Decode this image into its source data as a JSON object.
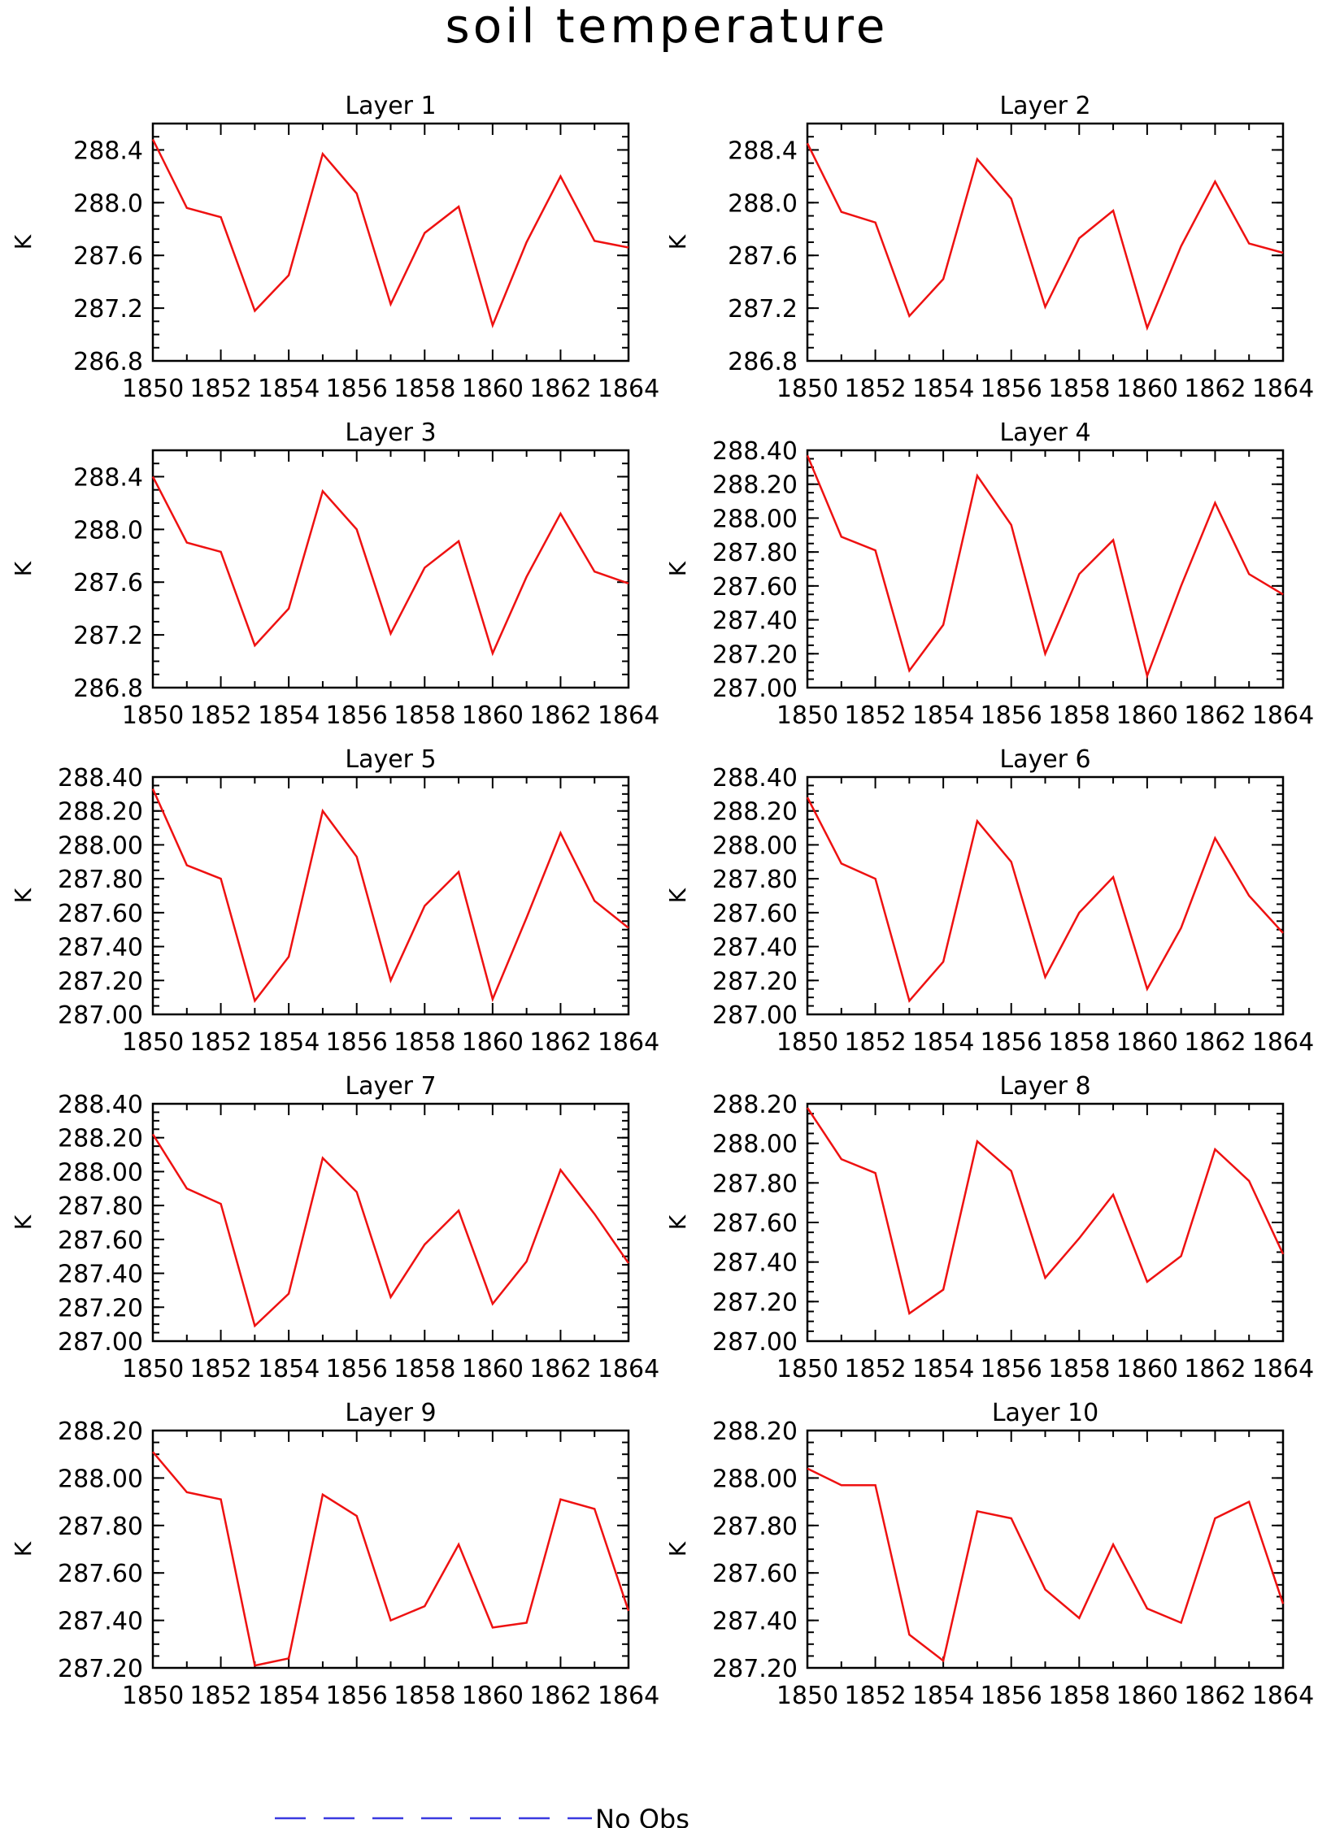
{
  "title": "soil temperature",
  "legend": {
    "label": "No Obs",
    "color": "#3a3ae0"
  },
  "series_color": "#ee1111",
  "chart_data": [
    {
      "type": "line",
      "title": "Layer 1",
      "ylabel": "K",
      "x_range": [
        1850,
        1864
      ],
      "y_range": [
        286.8,
        288.6
      ],
      "x_ticks": [
        "1850",
        "1852",
        "1854",
        "1856",
        "1858",
        "1860",
        "1862",
        "1864"
      ],
      "y_ticks": [
        "286.8",
        "287.2",
        "287.6",
        "288.0",
        "288.4"
      ],
      "y_tick_values": [
        286.8,
        287.2,
        287.6,
        288.0,
        288.4
      ],
      "x": [
        1850,
        1851,
        1852,
        1853,
        1854,
        1855,
        1856,
        1857,
        1858,
        1859,
        1860,
        1861,
        1862,
        1863,
        1864
      ],
      "values": [
        288.48,
        287.96,
        287.89,
        287.18,
        287.45,
        288.37,
        288.07,
        287.23,
        287.77,
        287.97,
        287.07,
        287.7,
        288.2,
        287.71,
        287.66
      ]
    },
    {
      "type": "line",
      "title": "Layer 2",
      "ylabel": "K",
      "x_range": [
        1850,
        1864
      ],
      "y_range": [
        286.8,
        288.6
      ],
      "x_ticks": [
        "1850",
        "1852",
        "1854",
        "1856",
        "1858",
        "1860",
        "1862",
        "1864"
      ],
      "y_ticks": [
        "286.8",
        "287.2",
        "287.6",
        "288.0",
        "288.4"
      ],
      "y_tick_values": [
        286.8,
        287.2,
        287.6,
        288.0,
        288.4
      ],
      "x": [
        1850,
        1851,
        1852,
        1853,
        1854,
        1855,
        1856,
        1857,
        1858,
        1859,
        1860,
        1861,
        1862,
        1863,
        1864
      ],
      "values": [
        288.45,
        287.93,
        287.85,
        287.14,
        287.42,
        288.33,
        288.03,
        287.21,
        287.73,
        287.94,
        287.05,
        287.67,
        288.16,
        287.69,
        287.62
      ]
    },
    {
      "type": "line",
      "title": "Layer 3",
      "ylabel": "K",
      "x_range": [
        1850,
        1864
      ],
      "y_range": [
        286.8,
        288.6
      ],
      "x_ticks": [
        "1850",
        "1852",
        "1854",
        "1856",
        "1858",
        "1860",
        "1862",
        "1864"
      ],
      "y_ticks": [
        "286.8",
        "287.2",
        "287.6",
        "288.0",
        "288.4"
      ],
      "y_tick_values": [
        286.8,
        287.2,
        287.6,
        288.0,
        288.4
      ],
      "x": [
        1850,
        1851,
        1852,
        1853,
        1854,
        1855,
        1856,
        1857,
        1858,
        1859,
        1860,
        1861,
        1862,
        1863,
        1864
      ],
      "values": [
        288.4,
        287.9,
        287.83,
        287.12,
        287.4,
        288.29,
        288.0,
        287.21,
        287.71,
        287.91,
        287.06,
        287.64,
        288.12,
        287.68,
        287.59
      ]
    },
    {
      "type": "line",
      "title": "Layer 4",
      "ylabel": "K",
      "x_range": [
        1850,
        1864
      ],
      "y_range": [
        287.0,
        288.4
      ],
      "x_ticks": [
        "1850",
        "1852",
        "1854",
        "1856",
        "1858",
        "1860",
        "1862",
        "1864"
      ],
      "y_ticks": [
        "287.00",
        "287.20",
        "287.40",
        "287.60",
        "287.80",
        "288.00",
        "288.20",
        "288.40"
      ],
      "y_tick_values": [
        287.0,
        287.2,
        287.4,
        287.6,
        287.8,
        288.0,
        288.2,
        288.4
      ],
      "x": [
        1850,
        1851,
        1852,
        1853,
        1854,
        1855,
        1856,
        1857,
        1858,
        1859,
        1860,
        1861,
        1862,
        1863,
        1864
      ],
      "values": [
        288.37,
        287.89,
        287.81,
        287.1,
        287.37,
        288.25,
        287.96,
        287.2,
        287.67,
        287.87,
        287.07,
        287.6,
        288.09,
        287.67,
        287.55
      ]
    },
    {
      "type": "line",
      "title": "Layer 5",
      "ylabel": "K",
      "x_range": [
        1850,
        1864
      ],
      "y_range": [
        287.0,
        288.4
      ],
      "x_ticks": [
        "1850",
        "1852",
        "1854",
        "1856",
        "1858",
        "1860",
        "1862",
        "1864"
      ],
      "y_ticks": [
        "287.00",
        "287.20",
        "287.40",
        "287.60",
        "287.80",
        "288.00",
        "288.20",
        "288.40"
      ],
      "y_tick_values": [
        287.0,
        287.2,
        287.4,
        287.6,
        287.8,
        288.0,
        288.2,
        288.4
      ],
      "x": [
        1850,
        1851,
        1852,
        1853,
        1854,
        1855,
        1856,
        1857,
        1858,
        1859,
        1860,
        1861,
        1862,
        1863,
        1864
      ],
      "values": [
        288.33,
        287.88,
        287.8,
        287.08,
        287.34,
        288.2,
        287.93,
        287.2,
        287.64,
        287.84,
        287.09,
        287.57,
        288.07,
        287.67,
        287.51
      ]
    },
    {
      "type": "line",
      "title": "Layer 6",
      "ylabel": "K",
      "x_range": [
        1850,
        1864
      ],
      "y_range": [
        287.0,
        288.4
      ],
      "x_ticks": [
        "1850",
        "1852",
        "1854",
        "1856",
        "1858",
        "1860",
        "1862",
        "1864"
      ],
      "y_ticks": [
        "287.00",
        "287.20",
        "287.40",
        "287.60",
        "287.80",
        "288.00",
        "288.20",
        "288.40"
      ],
      "y_tick_values": [
        287.0,
        287.2,
        287.4,
        287.6,
        287.8,
        288.0,
        288.2,
        288.4
      ],
      "x": [
        1850,
        1851,
        1852,
        1853,
        1854,
        1855,
        1856,
        1857,
        1858,
        1859,
        1860,
        1861,
        1862,
        1863,
        1864
      ],
      "values": [
        288.28,
        287.89,
        287.8,
        287.08,
        287.31,
        288.14,
        287.9,
        287.22,
        287.6,
        287.81,
        287.15,
        287.51,
        288.04,
        287.7,
        287.48
      ]
    },
    {
      "type": "line",
      "title": "Layer 7",
      "ylabel": "K",
      "x_range": [
        1850,
        1864
      ],
      "y_range": [
        287.0,
        288.4
      ],
      "x_ticks": [
        "1850",
        "1852",
        "1854",
        "1856",
        "1858",
        "1860",
        "1862",
        "1864"
      ],
      "y_ticks": [
        "287.00",
        "287.20",
        "287.40",
        "287.60",
        "287.80",
        "288.00",
        "288.20",
        "288.40"
      ],
      "y_tick_values": [
        287.0,
        287.2,
        287.4,
        287.6,
        287.8,
        288.0,
        288.2,
        288.4
      ],
      "x": [
        1850,
        1851,
        1852,
        1853,
        1854,
        1855,
        1856,
        1857,
        1858,
        1859,
        1860,
        1861,
        1862,
        1863,
        1864
      ],
      "values": [
        288.22,
        287.9,
        287.81,
        287.09,
        287.28,
        288.08,
        287.88,
        287.26,
        287.57,
        287.77,
        287.22,
        287.47,
        288.01,
        287.75,
        287.46
      ]
    },
    {
      "type": "line",
      "title": "Layer 8",
      "ylabel": "K",
      "x_range": [
        1850,
        1864
      ],
      "y_range": [
        287.0,
        288.2
      ],
      "x_ticks": [
        "1850",
        "1852",
        "1854",
        "1856",
        "1858",
        "1860",
        "1862",
        "1864"
      ],
      "y_ticks": [
        "287.00",
        "287.20",
        "287.40",
        "287.60",
        "287.80",
        "288.00",
        "288.20"
      ],
      "y_tick_values": [
        287.0,
        287.2,
        287.4,
        287.6,
        287.8,
        288.0,
        288.2
      ],
      "x": [
        1850,
        1851,
        1852,
        1853,
        1854,
        1855,
        1856,
        1857,
        1858,
        1859,
        1860,
        1861,
        1862,
        1863,
        1864
      ],
      "values": [
        288.18,
        287.92,
        287.85,
        287.14,
        287.26,
        288.01,
        287.86,
        287.32,
        287.52,
        287.74,
        287.3,
        287.43,
        287.97,
        287.81,
        287.44
      ]
    },
    {
      "type": "line",
      "title": "Layer 9",
      "ylabel": "K",
      "x_range": [
        1850,
        1864
      ],
      "y_range": [
        287.2,
        288.2
      ],
      "x_ticks": [
        "1850",
        "1852",
        "1854",
        "1856",
        "1858",
        "1860",
        "1862",
        "1864"
      ],
      "y_ticks": [
        "287.20",
        "287.40",
        "287.60",
        "287.80",
        "288.00",
        "288.20"
      ],
      "y_tick_values": [
        287.2,
        287.4,
        287.6,
        287.8,
        288.0,
        288.2
      ],
      "x": [
        1850,
        1851,
        1852,
        1853,
        1854,
        1855,
        1856,
        1857,
        1858,
        1859,
        1860,
        1861,
        1862,
        1863,
        1864
      ],
      "values": [
        288.11,
        287.94,
        287.91,
        287.21,
        287.24,
        287.93,
        287.84,
        287.4,
        287.46,
        287.72,
        287.37,
        287.39,
        287.91,
        287.87,
        287.44
      ]
    },
    {
      "type": "line",
      "title": "Layer 10",
      "ylabel": "K",
      "x_range": [
        1850,
        1864
      ],
      "y_range": [
        287.2,
        288.2
      ],
      "x_ticks": [
        "1850",
        "1852",
        "1854",
        "1856",
        "1858",
        "1860",
        "1862",
        "1864"
      ],
      "y_ticks": [
        "287.20",
        "287.40",
        "287.60",
        "287.80",
        "288.00",
        "288.20"
      ],
      "y_tick_values": [
        287.2,
        287.4,
        287.6,
        287.8,
        288.0,
        288.2
      ],
      "x": [
        1850,
        1851,
        1852,
        1853,
        1854,
        1855,
        1856,
        1857,
        1858,
        1859,
        1860,
        1861,
        1862,
        1863,
        1864
      ],
      "values": [
        288.04,
        287.97,
        287.97,
        287.34,
        287.23,
        287.86,
        287.83,
        287.53,
        287.41,
        287.72,
        287.45,
        287.39,
        287.83,
        287.9,
        287.47
      ]
    }
  ]
}
